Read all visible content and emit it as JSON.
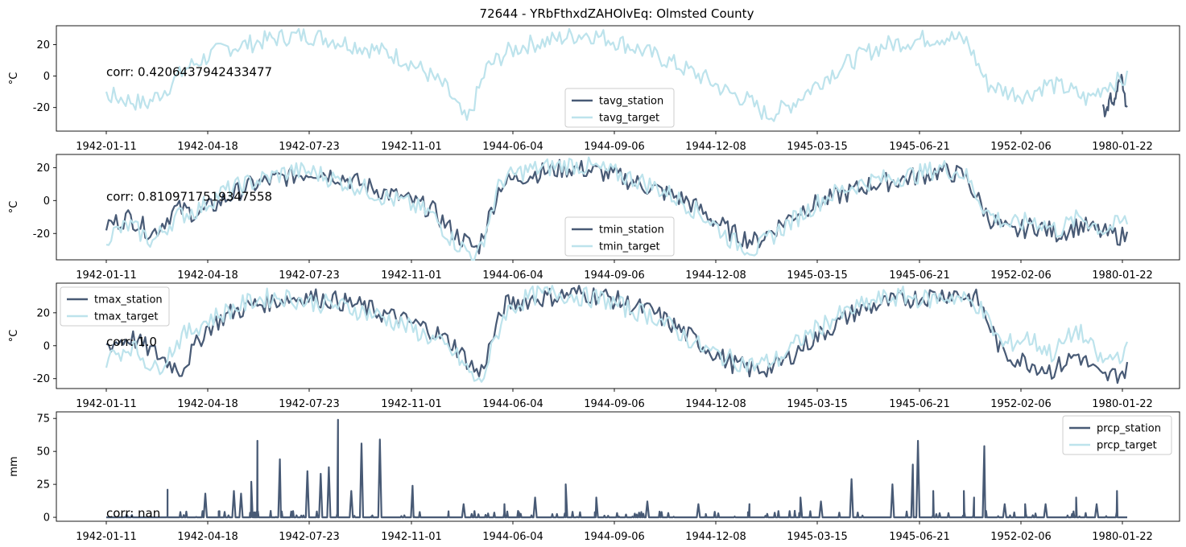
{
  "figure": {
    "title": "72644 - YRbFthxdZAHOlvEq: Olmsted County"
  },
  "colors": {
    "station": "#485a75",
    "target": "#bde3ec"
  },
  "x_ticks": [
    "1942-01-11",
    "1942-04-18",
    "1942-07-23",
    "1942-11-01",
    "1944-06-04",
    "1944-09-06",
    "1944-12-08",
    "1945-03-15",
    "1945-06-21",
    "1952-02-06",
    "1980-01-22"
  ],
  "chart_data": [
    {
      "type": "line",
      "ylabel": "°C",
      "ylim": [
        -35,
        32
      ],
      "yticks": [
        20,
        0,
        -20
      ],
      "annotation": "corr: 0.4206437942433477",
      "legend": {
        "placement": "lower-center",
        "entries": [
          "tavg_station",
          "tavg_target"
        ]
      },
      "series": [
        {
          "name": "tavg_station",
          "values": [
            -18,
            -24,
            -20,
            -19,
            -10,
            -20,
            -15,
            -12,
            -5,
            0,
            -2,
            -8,
            -17,
            -20
          ]
        },
        {
          "name": "tavg_target",
          "values": [
            -12,
            -15,
            -18,
            -8,
            5,
            12,
            18,
            20,
            23,
            25,
            26,
            24,
            21,
            18,
            15,
            10,
            2,
            -8,
            -30,
            5,
            15,
            20,
            22,
            25,
            27,
            24,
            20,
            15,
            10,
            4,
            -2,
            -10,
            -15,
            -25,
            -20,
            -10,
            0,
            8,
            15,
            20,
            22,
            24,
            25,
            22,
            -5,
            -10,
            -12,
            -5,
            -8,
            -15,
            -5,
            -2
          ]
        }
      ]
    },
    {
      "type": "line",
      "ylabel": "°C",
      "ylim": [
        -36,
        28
      ],
      "yticks": [
        20,
        0,
        -20
      ],
      "annotation": "corr: 0.8109717519347558",
      "legend": {
        "placement": "lower-center",
        "entries": [
          "tmin_station",
          "tmin_target"
        ]
      },
      "series": [
        {
          "name": "tmin_station",
          "values": [
            -15,
            -10,
            -20,
            -5,
            -8,
            0,
            8,
            12,
            15,
            18,
            15,
            10,
            5,
            0,
            -5,
            -20,
            -30,
            10,
            15,
            18,
            20,
            18,
            15,
            10,
            5,
            0,
            -10,
            -20,
            -25,
            -15,
            -5,
            0,
            5,
            10,
            12,
            15,
            18,
            15,
            -10,
            -20,
            -15,
            -20,
            -15,
            -20,
            -22
          ]
        },
        {
          "name": "tmin_target",
          "values": [
            -22,
            -15,
            -25,
            -10,
            -5,
            5,
            10,
            14,
            18,
            17,
            12,
            8,
            2,
            -2,
            -8,
            -25,
            -35,
            12,
            18,
            20,
            22,
            20,
            16,
            12,
            6,
            -2,
            -12,
            -25,
            -30,
            -18,
            -8,
            2,
            8,
            12,
            14,
            16,
            20,
            16,
            -8,
            -15,
            -12,
            -18,
            -10,
            -18,
            -12
          ]
        }
      ]
    },
    {
      "type": "line",
      "ylabel": "°C",
      "ylim": [
        -26,
        38
      ],
      "yticks": [
        20,
        0,
        -20
      ],
      "annotation": "corr: 1.0",
      "legend": {
        "placement": "upper-left",
        "entries": [
          "tmax_station",
          "tmax_target"
        ]
      },
      "series": [
        {
          "name": "tmax_station",
          "values": [
            0,
            5,
            -5,
            -15,
            10,
            20,
            25,
            28,
            30,
            28,
            25,
            20,
            15,
            10,
            0,
            -18,
            25,
            28,
            30,
            32,
            30,
            25,
            20,
            10,
            0,
            -10,
            -15,
            -12,
            0,
            10,
            20,
            25,
            28,
            30,
            32,
            28,
            -5,
            -10,
            -15,
            -5,
            -20,
            -15
          ]
        },
        {
          "name": "tmax_target",
          "values": [
            -8,
            0,
            -15,
            5,
            15,
            22,
            28,
            30,
            27,
            25,
            22,
            18,
            12,
            5,
            -5,
            -24,
            20,
            30,
            32,
            30,
            28,
            22,
            18,
            8,
            -2,
            -8,
            -12,
            -8,
            5,
            15,
            22,
            28,
            30,
            28,
            30,
            25,
            0,
            5,
            -5,
            10,
            -10,
            -3
          ]
        }
      ]
    },
    {
      "type": "line",
      "ylabel": "mm",
      "ylim": [
        -3,
        80
      ],
      "yticks": [
        75,
        50,
        25,
        0
      ],
      "annotation": "corr: nan",
      "legend": {
        "placement": "upper-right",
        "entries": [
          "prcp_station",
          "prcp_target"
        ]
      },
      "series": [
        {
          "name": "prcp_station",
          "spikes": [
            [
              0.06,
              21
            ],
            [
              0.097,
              18
            ],
            [
              0.125,
              20
            ],
            [
              0.132,
              18
            ],
            [
              0.142,
              27
            ],
            [
              0.148,
              58
            ],
            [
              0.17,
              44
            ],
            [
              0.197,
              35
            ],
            [
              0.21,
              33
            ],
            [
              0.218,
              38
            ],
            [
              0.227,
              74
            ],
            [
              0.24,
              20
            ],
            [
              0.25,
              56
            ],
            [
              0.268,
              59
            ],
            [
              0.3,
              24
            ],
            [
              0.35,
              10
            ],
            [
              0.39,
              10
            ],
            [
              0.42,
              15
            ],
            [
              0.45,
              25
            ],
            [
              0.48,
              15
            ],
            [
              0.53,
              12
            ],
            [
              0.58,
              10
            ],
            [
              0.63,
              10
            ],
            [
              0.68,
              15
            ],
            [
              0.7,
              12
            ],
            [
              0.73,
              29
            ],
            [
              0.77,
              25
            ],
            [
              0.79,
              40
            ],
            [
              0.795,
              58
            ],
            [
              0.81,
              20
            ],
            [
              0.84,
              20
            ],
            [
              0.85,
              15
            ],
            [
              0.86,
              54
            ],
            [
              0.88,
              10
            ],
            [
              0.9,
              10
            ],
            [
              0.92,
              10
            ],
            [
              0.95,
              15
            ],
            [
              0.97,
              10
            ],
            [
              0.99,
              20
            ]
          ]
        },
        {
          "name": "prcp_target",
          "values": []
        }
      ]
    }
  ]
}
